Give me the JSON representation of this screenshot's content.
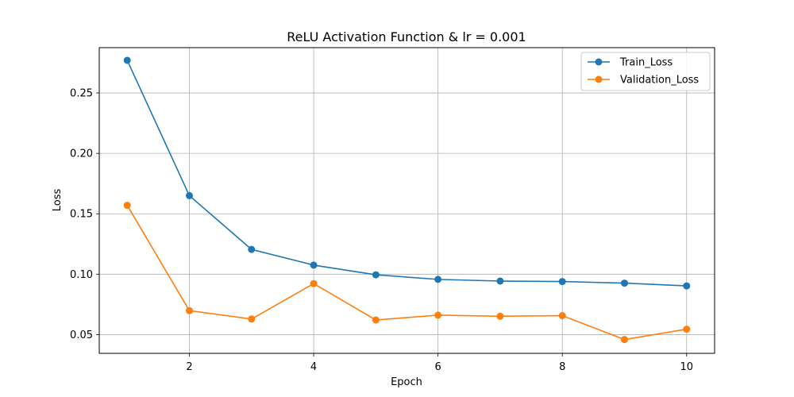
{
  "chart_data": {
    "type": "line",
    "title": "ReLU Activation Function & lr = 0.001",
    "xlabel": "Epoch",
    "ylabel": "Loss",
    "x": [
      1,
      2,
      3,
      4,
      5,
      6,
      7,
      8,
      9,
      10
    ],
    "xlim": [
      0.55,
      10.45
    ],
    "ylim": [
      0.0345,
      0.2875
    ],
    "xticks": [
      2,
      4,
      6,
      8,
      10
    ],
    "xtick_labels": [
      "2",
      "4",
      "6",
      "8",
      "10"
    ],
    "yticks": [
      0.05,
      0.1,
      0.15,
      0.2,
      0.25
    ],
    "ytick_labels": [
      "0.05",
      "0.10",
      "0.15",
      "0.20",
      "0.25"
    ],
    "grid": true,
    "legend_position": "top-right",
    "series": [
      {
        "name": "Train_Loss",
        "color": "#1f77b4",
        "values": [
          0.277,
          0.165,
          0.1205,
          0.1075,
          0.0995,
          0.0957,
          0.0943,
          0.0939,
          0.0926,
          0.0903
        ]
      },
      {
        "name": "Validation_Loss",
        "color": "#ff7f0e",
        "values": [
          0.157,
          0.0698,
          0.0629,
          0.0922,
          0.0621,
          0.0661,
          0.0652,
          0.0657,
          0.0459,
          0.0545
        ]
      }
    ]
  }
}
